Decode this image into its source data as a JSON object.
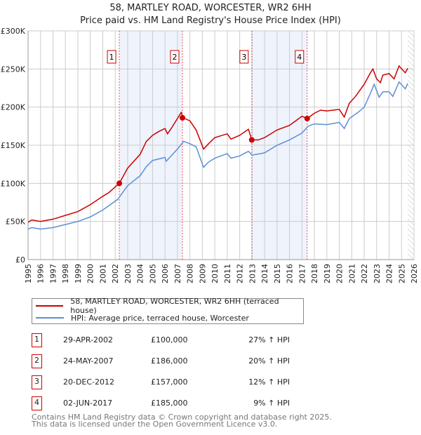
{
  "title": "58, MARTLEY ROAD, WORCESTER, WR2 6HH",
  "subtitle": "Price paid vs. HM Land Registry's House Price Index (HPI)",
  "colors": {
    "property": "#cc0000",
    "hpi": "#5b8fd4",
    "shade": "#eef3fc",
    "marker": "#cc0000"
  },
  "chart_data": {
    "type": "line",
    "ylim": [
      0,
      300000
    ],
    "xlim": [
      1995,
      2026
    ],
    "yticks": [
      {
        "v": 0,
        "label": "£0"
      },
      {
        "v": 50000,
        "label": "£50K"
      },
      {
        "v": 100000,
        "label": "£100K"
      },
      {
        "v": 150000,
        "label": "£150K"
      },
      {
        "v": 200000,
        "label": "£200K"
      },
      {
        "v": 250000,
        "label": "£250K"
      },
      {
        "v": 300000,
        "label": "£300K"
      }
    ],
    "xticks": [
      "1995",
      "1996",
      "1997",
      "1998",
      "1999",
      "2000",
      "2001",
      "2002",
      "2003",
      "2004",
      "2005",
      "2006",
      "2007",
      "2008",
      "2009",
      "2010",
      "2011",
      "2012",
      "2013",
      "2014",
      "2015",
      "2016",
      "2017",
      "2018",
      "2019",
      "2020",
      "2021",
      "2022",
      "2023",
      "2024",
      "2025",
      "2026"
    ],
    "forecast_from": 2025.5,
    "series": [
      {
        "name": "58, MARTLEY ROAD, WORCESTER, WR2 6HH (terraced house)",
        "points": [
          [
            1995,
            49000
          ],
          [
            1995.3,
            52000
          ],
          [
            1996,
            50000
          ],
          [
            1997,
            53000
          ],
          [
            1998,
            58000
          ],
          [
            1999,
            63000
          ],
          [
            2000,
            72000
          ],
          [
            2001,
            83000
          ],
          [
            2001.5,
            88000
          ],
          [
            2002.33,
            100000
          ],
          [
            2003,
            120000
          ],
          [
            2004,
            138000
          ],
          [
            2004.5,
            155000
          ],
          [
            2005,
            163000
          ],
          [
            2005.5,
            168000
          ],
          [
            2006,
            172000
          ],
          [
            2006.2,
            165000
          ],
          [
            2006.5,
            172000
          ],
          [
            2007.3,
            193000
          ],
          [
            2007.45,
            186000
          ],
          [
            2008,
            182000
          ],
          [
            2008.5,
            170000
          ],
          [
            2009.1,
            145000
          ],
          [
            2009.5,
            152000
          ],
          [
            2010,
            160000
          ],
          [
            2011,
            165000
          ],
          [
            2011.3,
            158000
          ],
          [
            2012,
            163000
          ],
          [
            2012.7,
            171000
          ],
          [
            2012.97,
            157000
          ],
          [
            2013.5,
            157000
          ],
          [
            2014,
            160000
          ],
          [
            2015,
            170000
          ],
          [
            2016,
            176000
          ],
          [
            2016.5,
            182000
          ],
          [
            2017,
            188000
          ],
          [
            2017.42,
            185000
          ],
          [
            2018,
            192000
          ],
          [
            2018.5,
            196000
          ],
          [
            2019,
            195000
          ],
          [
            2019.5,
            196000
          ],
          [
            2020,
            197000
          ],
          [
            2020.4,
            187000
          ],
          [
            2020.8,
            205000
          ],
          [
            2021.3,
            214000
          ],
          [
            2022,
            230000
          ],
          [
            2022.5,
            245000
          ],
          [
            2022.7,
            250000
          ],
          [
            2023,
            237000
          ],
          [
            2023.3,
            232000
          ],
          [
            2023.5,
            242000
          ],
          [
            2024,
            244000
          ],
          [
            2024.4,
            237000
          ],
          [
            2024.8,
            254000
          ],
          [
            2025.3,
            245000
          ],
          [
            2025.5,
            251000
          ]
        ]
      },
      {
        "name": "HPI: Average price, terraced house, Worcester",
        "points": [
          [
            1995,
            40000
          ],
          [
            1995.3,
            42000
          ],
          [
            1996,
            40000
          ],
          [
            1997,
            42000
          ],
          [
            1998,
            46000
          ],
          [
            1999,
            50000
          ],
          [
            2000,
            56000
          ],
          [
            2001,
            65000
          ],
          [
            2002.2,
            79000
          ],
          [
            2003,
            97000
          ],
          [
            2004,
            110000
          ],
          [
            2004.5,
            122000
          ],
          [
            2005,
            130000
          ],
          [
            2006,
            134000
          ],
          [
            2006.1,
            129000
          ],
          [
            2007,
            145000
          ],
          [
            2007.5,
            155000
          ],
          [
            2008,
            152000
          ],
          [
            2008.5,
            148000
          ],
          [
            2009.1,
            121000
          ],
          [
            2009.5,
            128000
          ],
          [
            2010,
            133000
          ],
          [
            2011,
            139000
          ],
          [
            2011.3,
            133000
          ],
          [
            2012,
            136000
          ],
          [
            2012.7,
            142000
          ],
          [
            2013,
            137000
          ],
          [
            2014,
            140000
          ],
          [
            2015,
            150000
          ],
          [
            2016,
            157000
          ],
          [
            2017,
            166000
          ],
          [
            2017.5,
            175000
          ],
          [
            2018,
            178000
          ],
          [
            2019,
            177000
          ],
          [
            2020,
            180000
          ],
          [
            2020.4,
            172000
          ],
          [
            2020.8,
            185000
          ],
          [
            2021.5,
            193000
          ],
          [
            2022,
            200000
          ],
          [
            2022.5,
            218000
          ],
          [
            2022.8,
            230000
          ],
          [
            2023.2,
            213000
          ],
          [
            2023.5,
            220000
          ],
          [
            2024,
            220000
          ],
          [
            2024.3,
            214000
          ],
          [
            2024.8,
            233000
          ],
          [
            2025.3,
            224000
          ],
          [
            2025.5,
            231000
          ]
        ]
      }
    ],
    "sales": [
      {
        "id": "1",
        "x": 2002.33,
        "price": 100000,
        "date": "29-APR-2002",
        "price_label": "£100,000",
        "hpi": "27% ↑ HPI"
      },
      {
        "id": "2",
        "x": 2007.4,
        "price": 186000,
        "date": "24-MAY-2007",
        "price_label": "£186,000",
        "hpi": "20% ↑ HPI"
      },
      {
        "id": "3",
        "x": 2012.97,
        "price": 157000,
        "date": "20-DEC-2012",
        "price_label": "£157,000",
        "hpi": "12% ↑ HPI"
      },
      {
        "id": "4",
        "x": 2017.42,
        "price": 185000,
        "date": "02-JUN-2017",
        "price_label": "£185,000",
        "hpi": "9% ↑ HPI"
      }
    ]
  },
  "legend": {
    "property": "58, MARTLEY ROAD, WORCESTER, WR2 6HH (terraced house)",
    "hpi": "HPI: Average price, terraced house, Worcester"
  },
  "footer": {
    "line1": "Contains HM Land Registry data © Crown copyright and database right 2025.",
    "line2": "This data is licensed under the Open Government Licence v3.0."
  }
}
